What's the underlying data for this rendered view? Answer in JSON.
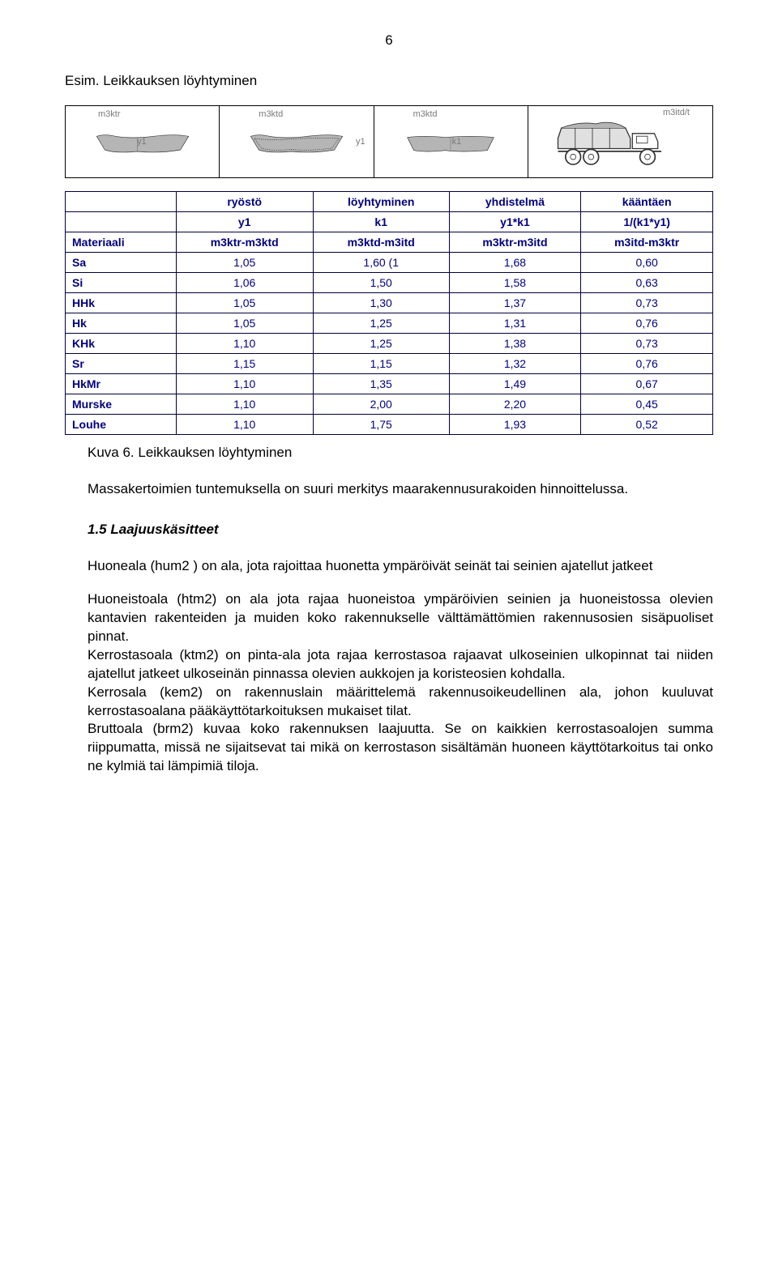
{
  "page_number": "6",
  "example_title": "Esim. Leikkauksen löyhtyminen",
  "diagram": {
    "labels": {
      "m3ktr": "m3ktr",
      "m3ktd": "m3ktd",
      "m3itd_t": "m3itd/t",
      "y1": "y1",
      "k1": "k1"
    }
  },
  "table": {
    "header_row1": [
      "",
      "ryöstö",
      "löyhtyminen",
      "yhdistelmä",
      "kääntäen"
    ],
    "header_row2": [
      "",
      "y1",
      "k1",
      "y1*k1",
      "1/(k1*y1)"
    ],
    "header_row3": [
      "Materiaali",
      "m3ktr-m3ktd",
      "m3ktd-m3itd",
      "m3ktr-m3itd",
      "m3itd-m3ktr"
    ],
    "rows": [
      {
        "label": "Sa",
        "cells": [
          "1,05",
          "1,60 (1",
          "1,68",
          "0,60"
        ]
      },
      {
        "label": "Si",
        "cells": [
          "1,06",
          "1,50",
          "1,58",
          "0,63"
        ]
      },
      {
        "label": "HHk",
        "cells": [
          "1,05",
          "1,30",
          "1,37",
          "0,73"
        ]
      },
      {
        "label": "Hk",
        "cells": [
          "1,05",
          "1,25",
          "1,31",
          "0,76"
        ]
      },
      {
        "label": "KHk",
        "cells": [
          "1,10",
          "1,25",
          "1,38",
          "0,73"
        ]
      },
      {
        "label": "Sr",
        "cells": [
          "1,15",
          "1,15",
          "1,32",
          "0,76"
        ]
      },
      {
        "label": "HkMr",
        "cells": [
          "1,10",
          "1,35",
          "1,49",
          "0,67"
        ]
      },
      {
        "label": "Murske",
        "cells": [
          "1,10",
          "2,00",
          "2,20",
          "0,45"
        ]
      },
      {
        "label": "Louhe",
        "cells": [
          "1,10",
          "1,75",
          "1,93",
          "0,52"
        ]
      }
    ],
    "colors": {
      "border": "#000040",
      "text": "#000080"
    }
  },
  "figure_caption": "Kuva 6. Leikkauksen löyhtyminen",
  "massak_text": "Massakertoimien tuntemuksella on suuri merkitys maarakennusurakoiden hinnoittelussa.",
  "section_title": "1.5 Laajuuskäsitteet",
  "para1": "Huoneala (hum2 ) on ala, jota rajoittaa huonetta ympäröivät seinät tai seinien ajatellut jatkeet",
  "para2": "Huoneistoala (htm2) on ala jota rajaa huoneistoa ympäröivien seinien ja huoneistossa olevien kantavien rakenteiden ja muiden koko rakennukselle välttämättömien rakennusosien sisäpuoliset pinnat.",
  "para3": "Kerrostasoala (ktm2) on pinta-ala jota rajaa kerrostasoa rajaavat ulkoseinien ulkopinnat tai niiden ajatellut jatkeet ulkoseinän pinnassa olevien aukkojen ja koristeosien kohdalla.",
  "para4": "Kerrosala (kem2) on rakennuslain määrittelemä rakennusoikeudellinen ala, johon kuuluvat kerrostasoalana pääkäyttötarkoituksen mukaiset tilat.",
  "para5": "Bruttoala (brm2) kuvaa koko rakennuksen laajuutta. Se on kaikkien kerrostasoalojen summa riippumatta, missä ne sijaitsevat tai mikä on kerrostason sisältämän huoneen käyttötarkoitus tai onko ne kylmiä tai lämpimiä tiloja."
}
